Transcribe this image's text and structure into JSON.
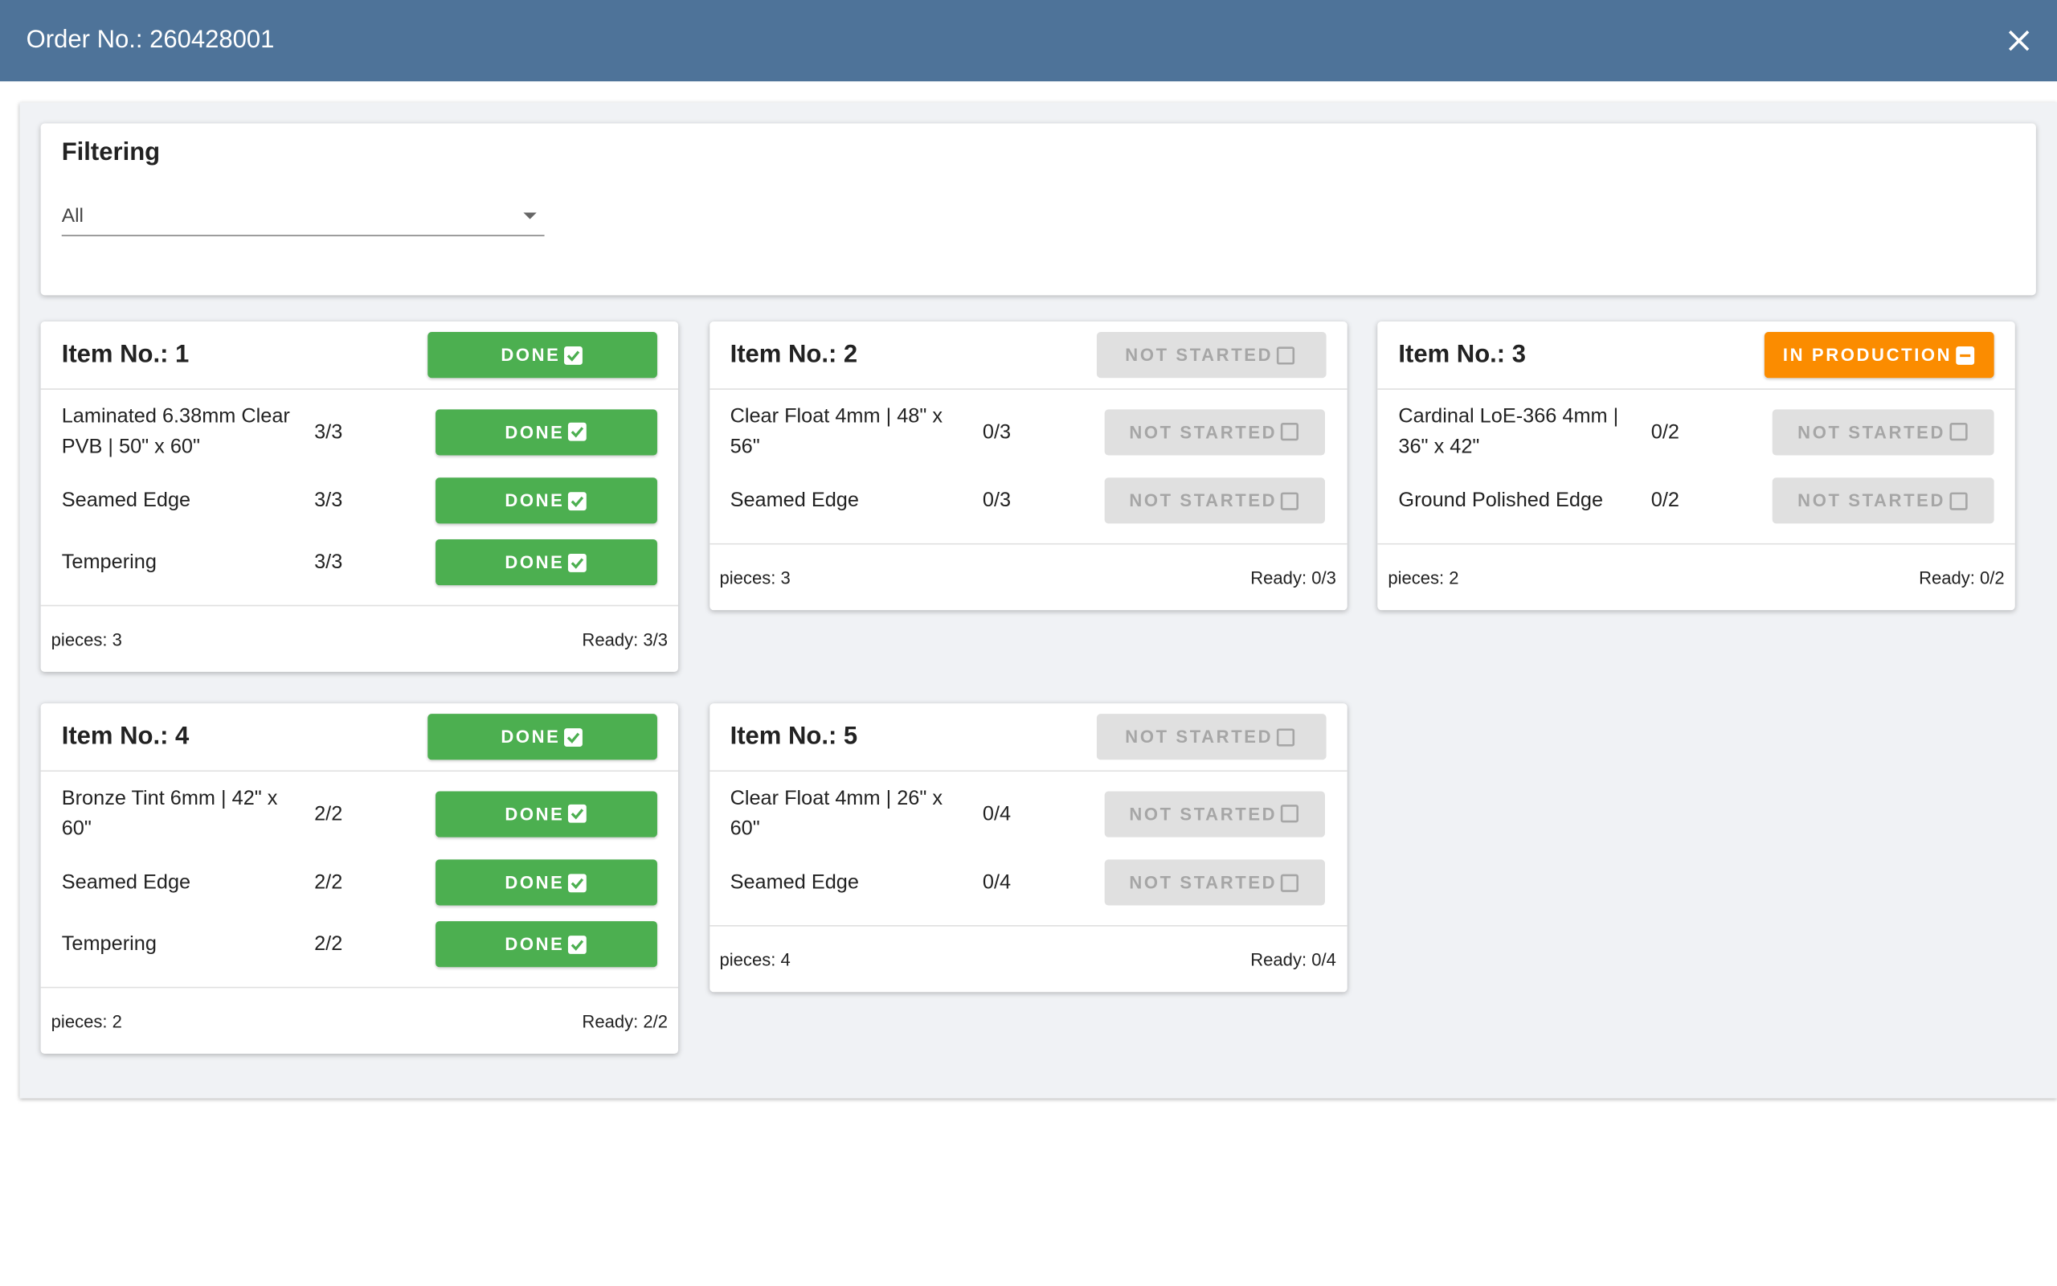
{
  "header": {
    "title": "Order No.: 260428001"
  },
  "filter": {
    "title": "Filtering",
    "value": "All"
  },
  "items": [
    {
      "title": "Item No.: 1",
      "status": {
        "label": "DONE",
        "color": "#4caf50"
      },
      "steps": [
        {
          "name": "Laminated 6.38mm Clear PVB | 50\" x 60\"",
          "progress": "3/3",
          "status": {
            "label": "DONE",
            "color": "#4caf50"
          }
        },
        {
          "name": "Seamed Edge",
          "progress": "3/3",
          "status": {
            "label": "DONE",
            "color": "#4caf50"
          }
        },
        {
          "name": "Tempering",
          "progress": "3/3",
          "status": {
            "label": "DONE",
            "color": "#4caf50"
          }
        }
      ],
      "pieces": "pieces: 3",
      "ready": "Ready: 3/3"
    },
    {
      "title": "Item No.: 2",
      "status": {
        "label": "NOT STARTED",
        "color": "#e0e0e0"
      },
      "steps": [
        {
          "name": "Clear Float 4mm | 48\" x 56\"",
          "progress": "0/3",
          "status": {
            "label": "NOT STARTED",
            "color": "#e0e0e0"
          }
        },
        {
          "name": "Seamed Edge",
          "progress": "0/3",
          "status": {
            "label": "NOT STARTED",
            "color": "#e0e0e0"
          }
        }
      ],
      "pieces": "pieces: 3",
      "ready": "Ready: 0/3"
    },
    {
      "title": "Item No.: 3",
      "status": {
        "label": "IN PRODUCTION",
        "color": "#fb8c00"
      },
      "steps": [
        {
          "name": "Cardinal LoE-366 4mm | 36\" x 42\"",
          "progress": "0/2",
          "status": {
            "label": "NOT STARTED",
            "color": "#e0e0e0"
          }
        },
        {
          "name": "Ground Polished Edge",
          "progress": "0/2",
          "status": {
            "label": "NOT STARTED",
            "color": "#e0e0e0"
          }
        }
      ],
      "pieces": "pieces: 2",
      "ready": "Ready: 0/2"
    },
    {
      "title": "Item No.: 4",
      "status": {
        "label": "DONE",
        "color": "#4caf50"
      },
      "steps": [
        {
          "name": "Bronze Tint 6mm | 42\" x 60\"",
          "progress": "2/2",
          "status": {
            "label": "DONE",
            "color": "#4caf50"
          }
        },
        {
          "name": "Seamed Edge",
          "progress": "2/2",
          "status": {
            "label": "DONE",
            "color": "#4caf50"
          }
        },
        {
          "name": "Tempering",
          "progress": "2/2",
          "status": {
            "label": "DONE",
            "color": "#4caf50"
          }
        }
      ],
      "pieces": "pieces: 2",
      "ready": "Ready: 2/2"
    },
    {
      "title": "Item No.: 5",
      "status": {
        "label": "NOT STARTED",
        "color": "#e0e0e0"
      },
      "steps": [
        {
          "name": "Clear Float 4mm | 26\" x 60\"",
          "progress": "0/4",
          "status": {
            "label": "NOT STARTED",
            "color": "#e0e0e0"
          }
        },
        {
          "name": "Seamed Edge",
          "progress": "0/4",
          "status": {
            "label": "NOT STARTED",
            "color": "#e0e0e0"
          }
        }
      ],
      "pieces": "pieces: 4",
      "ready": "Ready: 0/4"
    }
  ]
}
